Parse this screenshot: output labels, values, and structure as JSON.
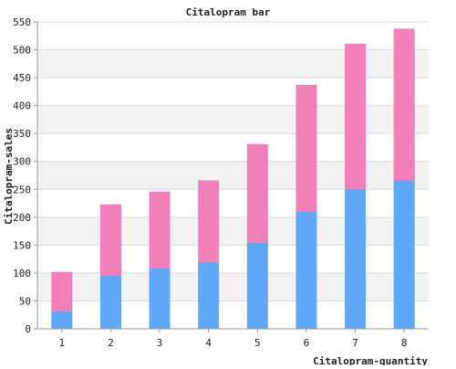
{
  "chart_data": {
    "type": "bar",
    "stacked": true,
    "title": "Citalopram bar",
    "xlabel": "Citalopram-quantity",
    "ylabel": "Citalopram-sales",
    "categories": [
      "1",
      "2",
      "3",
      "4",
      "5",
      "6",
      "7",
      "8"
    ],
    "series": [
      {
        "color": "#60a8f5",
        "values": [
          32,
          96,
          108,
          120,
          155,
          211,
          251,
          266
        ]
      },
      {
        "color": "#f280b8",
        "values": [
          70,
          127,
          138,
          146,
          176,
          226,
          260,
          272
        ]
      }
    ],
    "ylim": [
      0,
      550
    ],
    "yticks": [
      0,
      50,
      100,
      150,
      200,
      250,
      300,
      350,
      400,
      450,
      500,
      550
    ],
    "grid": true,
    "legend": "none",
    "colors": {
      "band": "#f2f2f2",
      "gridline": "#dcdcdc",
      "axis": "#999999",
      "text": "#222222"
    }
  }
}
